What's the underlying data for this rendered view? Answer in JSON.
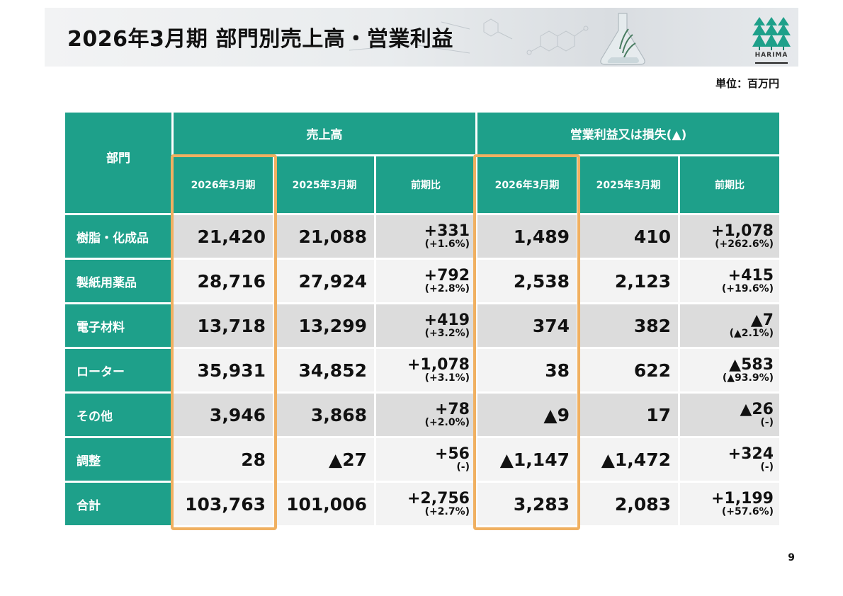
{
  "title": "2026年3月期 部門別売上高・営業利益",
  "logo_text": "HARIMA",
  "unit_label": "単位：百万円",
  "page_number": "9",
  "table": {
    "dept_header": "部門",
    "group_headers": [
      "売上高",
      "営業利益又は損失(▲)"
    ],
    "sub_headers": [
      "2026年3月期",
      "2025年3月期",
      "前期比",
      "2026年3月期",
      "2025年3月期",
      "前期比"
    ],
    "rows": [
      {
        "label": "樹脂・化成品",
        "sales_2026": "21,420",
        "sales_2025": "21,088",
        "sales_diff": "+331",
        "sales_pct": "(+1.6%)",
        "op_2026": "1,489",
        "op_2025": "410",
        "op_diff": "+1,078",
        "op_pct": "(+262.6%)"
      },
      {
        "label": "製紙用薬品",
        "sales_2026": "28,716",
        "sales_2025": "27,924",
        "sales_diff": "+792",
        "sales_pct": "(+2.8%)",
        "op_2026": "2,538",
        "op_2025": "2,123",
        "op_diff": "+415",
        "op_pct": "(+19.6%)"
      },
      {
        "label": "電子材料",
        "sales_2026": "13,718",
        "sales_2025": "13,299",
        "sales_diff": "+419",
        "sales_pct": "(+3.2%)",
        "op_2026": "374",
        "op_2025": "382",
        "op_diff": "▲7",
        "op_pct": "(▲2.1%)"
      },
      {
        "label": "ローター",
        "sales_2026": "35,931",
        "sales_2025": "34,852",
        "sales_diff": "+1,078",
        "sales_pct": "(+3.1%)",
        "op_2026": "38",
        "op_2025": "622",
        "op_diff": "▲583",
        "op_pct": "(▲93.9%)"
      },
      {
        "label": "その他",
        "sales_2026": "3,946",
        "sales_2025": "3,868",
        "sales_diff": "+78",
        "sales_pct": "(+2.0%)",
        "op_2026": "▲9",
        "op_2025": "17",
        "op_diff": "▲26",
        "op_pct": "(-)"
      },
      {
        "label": "調整",
        "sales_2026": "28",
        "sales_2025": "▲27",
        "sales_diff": "+56",
        "sales_pct": "(-)",
        "op_2026": "▲1,147",
        "op_2025": "▲1,472",
        "op_diff": "+324",
        "op_pct": "(-)"
      },
      {
        "label": "合計",
        "sales_2026": "103,763",
        "sales_2025": "101,006",
        "sales_diff": "+2,756",
        "sales_pct": "(+2.7%)",
        "op_2026": "3,283",
        "op_2025": "2,083",
        "op_diff": "+1,199",
        "op_pct": "(+57.6%)"
      }
    ]
  },
  "colors": {
    "header_teal": "#1ea08a",
    "highlight_orange": "#f0b061",
    "row_dark": "#dcdcdc",
    "row_light": "#f3f3f3"
  },
  "icons": {
    "logo": "harima-tree-logo-icon",
    "background": "flask-molecule-illustration"
  }
}
